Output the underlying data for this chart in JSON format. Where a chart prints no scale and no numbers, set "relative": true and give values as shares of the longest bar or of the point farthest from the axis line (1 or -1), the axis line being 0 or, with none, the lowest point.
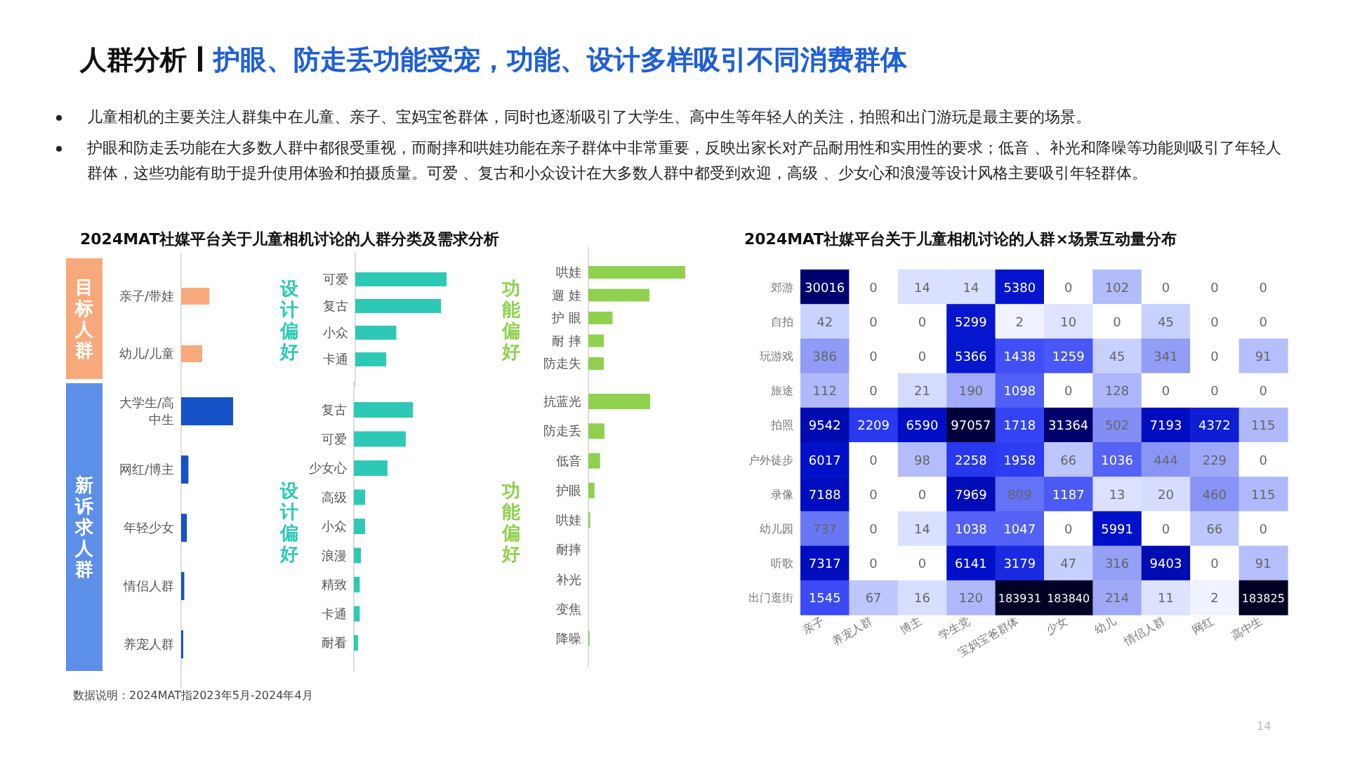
{
  "chart_data": [
    {
      "type": "other",
      "title": "人群分析",
      "subtitle": "护眼、防走丢功能受宠，功能、设计多样吸引不同消费群体",
      "annotations": [
        "儿童相机的主要关注人群集中在儿童、亲子、宝妈宝爸群体，同时也逐渐吸引了大学生、高中生等年轻人的关注，拍照和出门游玩是最主要的场景。",
        "护眼和防走丢功能在大多数人群中都很受重视，而耐摔和哄娃功能在亲子群体中非常重要，反映出家长对产品耐用性和实用性的要求；低音 、补光和降噪等功能则吸引了年轻人群体，这些功能有助于提升使用体验和拍摄质量。可爱 、复古和小众设计在大多数人群中都受到欢迎，高级 、少女心和浪漫等设计风格主要吸引年轻群体。",
        "数据说明：2024MAT指2023年5月-2024年4月",
        "14"
      ]
    },
    {
      "type": "bar",
      "orientation": "horizontal",
      "relative": true,
      "title": "2024MAT社媒平台关于儿童相机讨论的人群分类及需求分析",
      "ylabel": "目标人群",
      "color": "#f8a97c",
      "categories": [
        "亲子/带娃",
        "幼儿/儿童"
      ],
      "values": [
        1,
        0.75
      ]
    },
    {
      "type": "bar",
      "orientation": "horizontal",
      "relative": true,
      "ylabel": "设计偏好",
      "color": "#2ec9b4",
      "categories": [
        "可爱",
        "复古",
        "小众",
        "卡通"
      ],
      "values": [
        1,
        0.94,
        0.45,
        0.34
      ]
    },
    {
      "type": "bar",
      "orientation": "horizontal",
      "relative": true,
      "ylabel": "功能偏好",
      "color": "#8fd14f",
      "categories": [
        "哄娃",
        "遛 娃",
        "护 眼",
        "耐 摔",
        "防走失"
      ],
      "values": [
        1,
        0.63,
        0.25,
        0.16,
        0.16
      ]
    },
    {
      "type": "bar",
      "orientation": "horizontal",
      "relative": true,
      "ylabel": "新诉求人群",
      "color": "#1652c8",
      "categories": [
        "大学生/高中生",
        "网红/博主",
        "年轻少女",
        "情侣人群",
        "养宠人群"
      ],
      "values": [
        1,
        0.14,
        0.11,
        0.06,
        0.04
      ]
    },
    {
      "type": "bar",
      "orientation": "horizontal",
      "relative": true,
      "ylabel": "设计偏好",
      "color": "#2ec9b4",
      "categories": [
        "复古",
        "可爱",
        "少女心",
        "高级",
        "小众",
        "浪漫",
        "精致",
        "卡通",
        "耐看"
      ],
      "values": [
        1,
        0.88,
        0.57,
        0.19,
        0.19,
        0.12,
        0.1,
        0.1,
        0.07
      ]
    },
    {
      "type": "bar",
      "orientation": "horizontal",
      "relative": true,
      "ylabel": "功能偏好",
      "color": "#8fd14f",
      "categories": [
        "抗蓝光",
        "防走丢",
        "低音",
        "护眼",
        "哄娃",
        "耐摔",
        "补光",
        "变焦",
        "降噪"
      ],
      "values": [
        1,
        0.26,
        0.19,
        0.1,
        0.03,
        0,
        0,
        0,
        0.02
      ]
    },
    {
      "type": "heatmap",
      "title": "2024MAT社媒平台关于儿童相机讨论的人群×场景互动量分布",
      "data_labels": true,
      "categories": [
        "亲子",
        "养宠人群",
        "博主",
        "学生党",
        "宝妈宝爸群体",
        "少女",
        "幼儿",
        "情侣人群",
        "网红",
        "高中生"
      ],
      "y_categories": [
        "郊游",
        "自拍",
        "玩游戏",
        "旅途",
        "拍照",
        "户外徒步",
        "录像",
        "幼儿园",
        "听歌",
        "出门逛街"
      ],
      "cells": [
        [
          30016,
          0,
          14,
          14,
          5380,
          0,
          102,
          0,
          0,
          0
        ],
        [
          42,
          0,
          0,
          5299,
          2,
          10,
          0,
          45,
          0,
          0
        ],
        [
          386,
          0,
          0,
          5366,
          1438,
          1259,
          45,
          341,
          0,
          91
        ],
        [
          112,
          0,
          21,
          190,
          1098,
          0,
          128,
          0,
          0,
          0
        ],
        [
          9542,
          2209,
          6590,
          97057,
          1718,
          31364,
          502,
          7193,
          4372,
          115
        ],
        [
          6017,
          0,
          98,
          2258,
          1958,
          66,
          1036,
          444,
          229,
          0
        ],
        [
          7188,
          0,
          0,
          7969,
          809,
          1187,
          13,
          20,
          460,
          115
        ],
        [
          737,
          0,
          14,
          1038,
          1047,
          0,
          5991,
          0,
          66,
          0
        ],
        [
          7317,
          0,
          0,
          6141,
          3179,
          47,
          316,
          9403,
          0,
          91
        ],
        [
          1545,
          67,
          16,
          120,
          183931,
          183840,
          214,
          11,
          2,
          183825
        ]
      ]
    }
  ]
}
